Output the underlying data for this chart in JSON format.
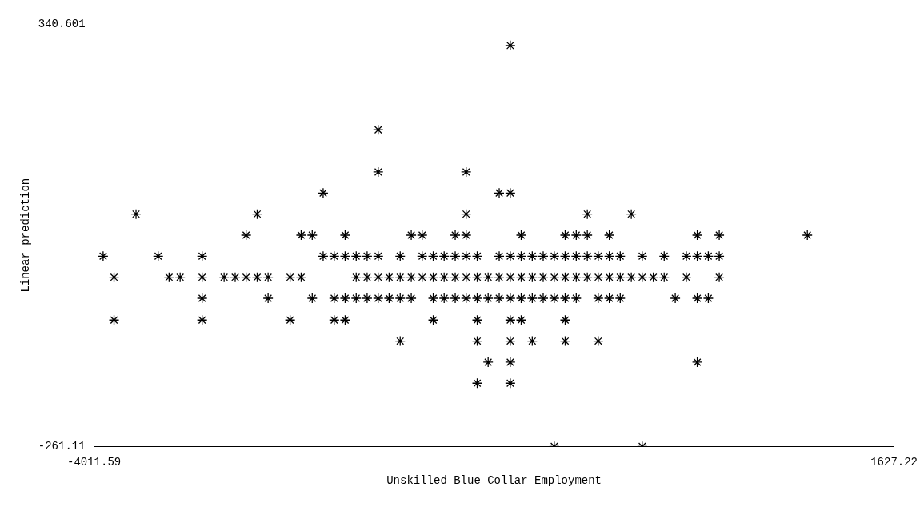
{
  "chart_data": {
    "type": "scatter",
    "xlabel": "Unskilled Blue Collar Employment",
    "ylabel": "Linear prediction",
    "xlim": [
      -4011.59,
      1627.22
    ],
    "xticks": [
      -4011.59,
      1627.22
    ],
    "ylim": [
      -261.11,
      340.601
    ],
    "yticks": [
      -261.11,
      340.601
    ],
    "grid": false,
    "legend": false,
    "marker": "cross",
    "series": [
      {
        "color": "#000000",
        "x": [
          -1078,
          -2009,
          -2009,
          -1389,
          -2397,
          -1156,
          -1078,
          -3716,
          -2862,
          -1389,
          -535,
          -225,
          -2940,
          -2552,
          -2474,
          -2242,
          -1776,
          -1699,
          -1466,
          -1389,
          -1001,
          -691,
          -613,
          -535,
          -380,
          240,
          395,
          1016,
          -3948,
          -3560,
          -3250,
          -2397,
          -2319,
          -2242,
          -2164,
          -2087,
          -2009,
          -1854,
          -1699,
          -1621,
          -1544,
          -1466,
          -1389,
          -1311,
          -1156,
          -1078,
          -1001,
          -923,
          -846,
          -768,
          -691,
          -613,
          -535,
          -458,
          -380,
          -303,
          -148,
          7,
          163,
          240,
          318,
          395,
          -3871,
          -3483,
          -3405,
          -3250,
          -3095,
          -3017,
          -2940,
          -2862,
          -2785,
          -2630,
          -2552,
          -2164,
          -2087,
          -2009,
          -1932,
          -1854,
          -1776,
          -1699,
          -1621,
          -1544,
          -1466,
          -1389,
          -1311,
          -1234,
          -1156,
          -1078,
          -1001,
          -923,
          -846,
          -768,
          -691,
          -613,
          -535,
          -458,
          -380,
          -303,
          -225,
          -148,
          -70,
          7,
          163,
          395,
          -3250,
          -2785,
          -2474,
          -2319,
          -2242,
          -2164,
          -2087,
          -2009,
          -1932,
          -1854,
          -1776,
          -1621,
          -1544,
          -1466,
          -1389,
          -1311,
          -1234,
          -1156,
          -1078,
          -1001,
          -923,
          -846,
          -768,
          -691,
          -613,
          -458,
          -380,
          -303,
          85,
          240,
          318,
          -3871,
          -3250,
          -2630,
          -2319,
          -2242,
          -1621,
          -1311,
          -1078,
          -1001,
          -691,
          -1854,
          -1311,
          -1078,
          -923,
          -691,
          -458,
          -1234,
          -1078,
          240,
          -1311,
          -1078,
          -768,
          -148
        ],
        "values": [
          310,
          190,
          130,
          130,
          100,
          100,
          100,
          70,
          70,
          70,
          70,
          70,
          40,
          40,
          40,
          40,
          40,
          40,
          40,
          40,
          40,
          40,
          40,
          40,
          40,
          40,
          40,
          40,
          10,
          10,
          10,
          10,
          10,
          10,
          10,
          10,
          10,
          10,
          10,
          10,
          10,
          10,
          10,
          10,
          10,
          10,
          10,
          10,
          10,
          10,
          10,
          10,
          10,
          10,
          10,
          10,
          10,
          10,
          10,
          10,
          10,
          10,
          -20,
          -20,
          -20,
          -20,
          -20,
          -20,
          -20,
          -20,
          -20,
          -20,
          -20,
          -20,
          -20,
          -20,
          -20,
          -20,
          -20,
          -20,
          -20,
          -20,
          -20,
          -20,
          -20,
          -20,
          -20,
          -20,
          -20,
          -20,
          -20,
          -20,
          -20,
          -20,
          -20,
          -20,
          -20,
          -20,
          -20,
          -20,
          -20,
          -20,
          -20,
          -20,
          -50,
          -50,
          -50,
          -50,
          -50,
          -50,
          -50,
          -50,
          -50,
          -50,
          -50,
          -50,
          -50,
          -50,
          -50,
          -50,
          -50,
          -50,
          -50,
          -50,
          -50,
          -50,
          -50,
          -50,
          -50,
          -50,
          -50,
          -50,
          -50,
          -50,
          -50,
          -81,
          -81,
          -81,
          -81,
          -81,
          -81,
          -81,
          -81,
          -81,
          -81,
          -111,
          -111,
          -111,
          -111,
          -111,
          -111,
          -141,
          -141,
          -141,
          -171,
          -171,
          -261,
          -261
        ]
      }
    ]
  }
}
